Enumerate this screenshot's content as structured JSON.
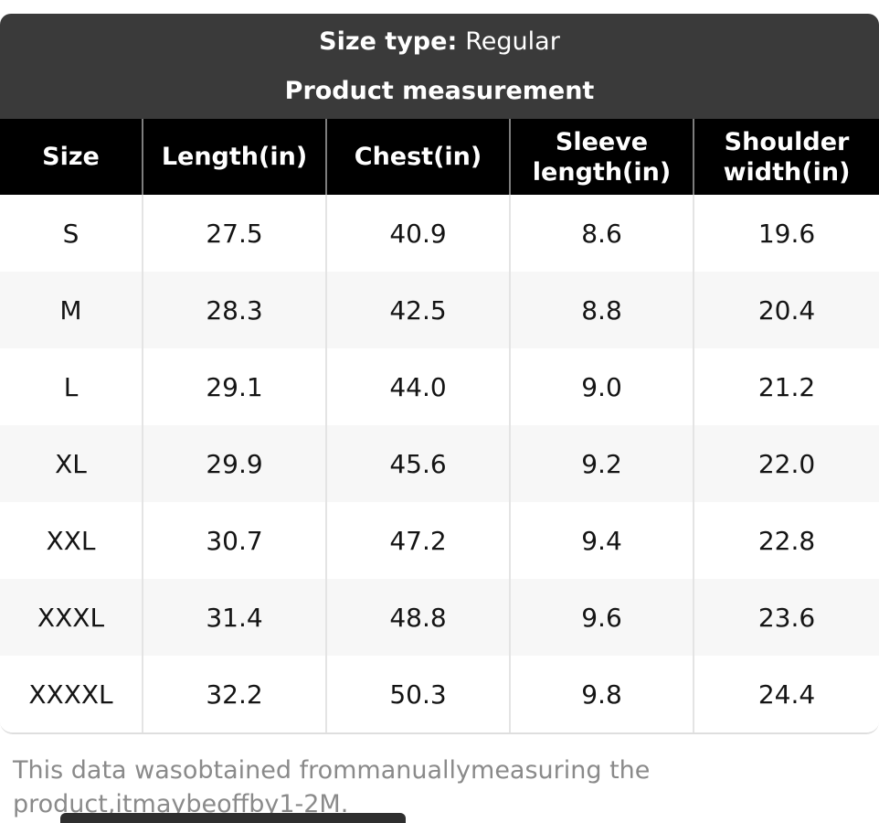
{
  "header": {
    "size_type_label": "Size type:",
    "size_type_value": "Regular",
    "title": "Product measurement"
  },
  "table": {
    "columns": [
      "Size",
      "Length(in)",
      "Chest(in)",
      "Sleeve length(in)",
      "Shoulder width(in)"
    ],
    "rows": [
      {
        "size": "S",
        "cells": [
          "27.5",
          "40.9",
          "8.6",
          "19.6"
        ]
      },
      {
        "size": "M",
        "cells": [
          "28.3",
          "42.5",
          "8.8",
          "20.4"
        ]
      },
      {
        "size": "L",
        "cells": [
          "29.1",
          "44.0",
          "9.0",
          "21.2"
        ]
      },
      {
        "size": "XL",
        "cells": [
          "29.9",
          "45.6",
          "9.2",
          "22.0"
        ]
      },
      {
        "size": "XXL",
        "cells": [
          "30.7",
          "47.2",
          "9.4",
          "22.8"
        ]
      },
      {
        "size": "XXXL",
        "cells": [
          "31.4",
          "48.8",
          "9.6",
          "23.6"
        ]
      },
      {
        "size": "XXXXL",
        "cells": [
          "32.2",
          "50.3",
          "9.8",
          "24.4"
        ]
      }
    ]
  },
  "note": "This data wasobtained frommanuallymeasuring the product,itmaybeoffby1-2M.",
  "colors": {
    "panel_background": "#3a3a3a",
    "table_header_background": "#000000",
    "row_stripe": "#f7f7f7",
    "note_text": "#8a8a8a"
  }
}
